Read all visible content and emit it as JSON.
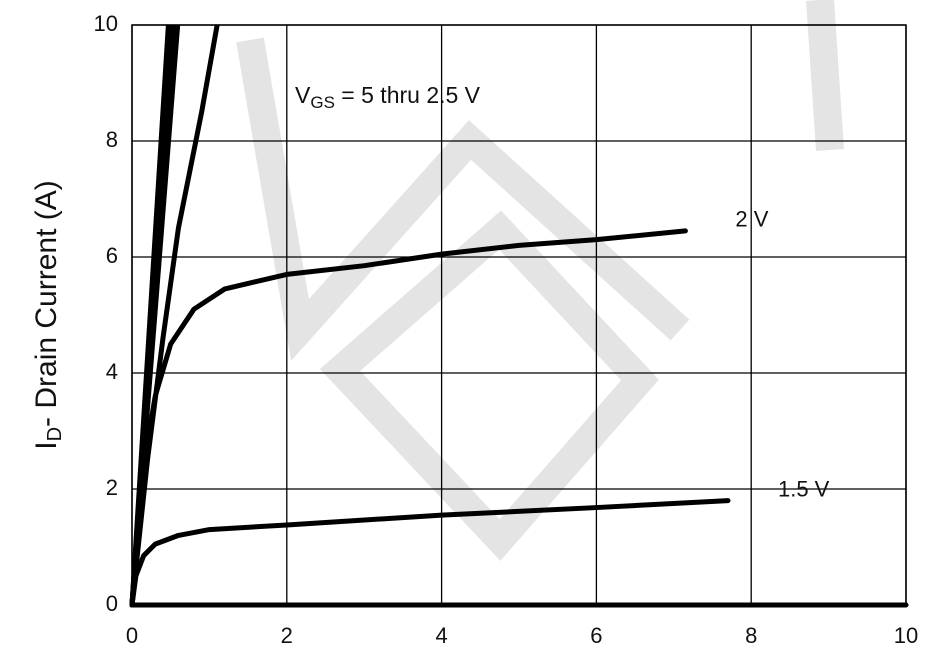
{
  "chart_data": {
    "type": "line",
    "y_label": {
      "text": "I",
      "sub": "D",
      "rest": "- Drain Current (A)"
    },
    "annotation": {
      "text": "V",
      "sub": "GS",
      "rest": " = 5 thru 2.5 V"
    },
    "xlim": [
      0,
      10
    ],
    "ylim": [
      0,
      10
    ],
    "xticks": [
      0,
      2,
      4,
      6,
      8,
      10
    ],
    "yticks": [
      0,
      2,
      4,
      6,
      8,
      10
    ],
    "grid": true,
    "color": "#000000",
    "series": [
      {
        "x": [
          0,
          0.47
        ],
        "values": [
          0,
          10
        ]
      },
      {
        "x": [
          0,
          0.5
        ],
        "values": [
          0,
          10
        ]
      },
      {
        "x": [
          0,
          0.53
        ],
        "values": [
          0,
          10
        ]
      },
      {
        "x": [
          0,
          0.56
        ],
        "values": [
          0,
          10
        ]
      },
      {
        "x": [
          0,
          0.59
        ],
        "values": [
          0,
          10
        ]
      },
      {
        "x": [
          0,
          0.2,
          0.4,
          0.6,
          0.9,
          1.1
        ],
        "values": [
          0,
          2.5,
          4.6,
          6.5,
          8.5,
          10
        ]
      },
      {
        "name": "2 V",
        "x": [
          0,
          0.1,
          0.2,
          0.3,
          0.5,
          0.8,
          1.2,
          2,
          3,
          4,
          5,
          6,
          7.15
        ],
        "values": [
          0,
          1.5,
          2.8,
          3.6,
          4.5,
          5.1,
          5.45,
          5.7,
          5.85,
          6.05,
          6.2,
          6.3,
          6.45
        ]
      },
      {
        "name": "1.5 V",
        "x": [
          0,
          0.05,
          0.15,
          0.3,
          0.6,
          1,
          2,
          4,
          6,
          7.7
        ],
        "values": [
          0,
          0.5,
          0.85,
          1.05,
          1.2,
          1.3,
          1.38,
          1.55,
          1.68,
          1.8
        ]
      },
      {
        "x": [
          0,
          10
        ],
        "values": [
          0,
          0
        ]
      }
    ]
  }
}
